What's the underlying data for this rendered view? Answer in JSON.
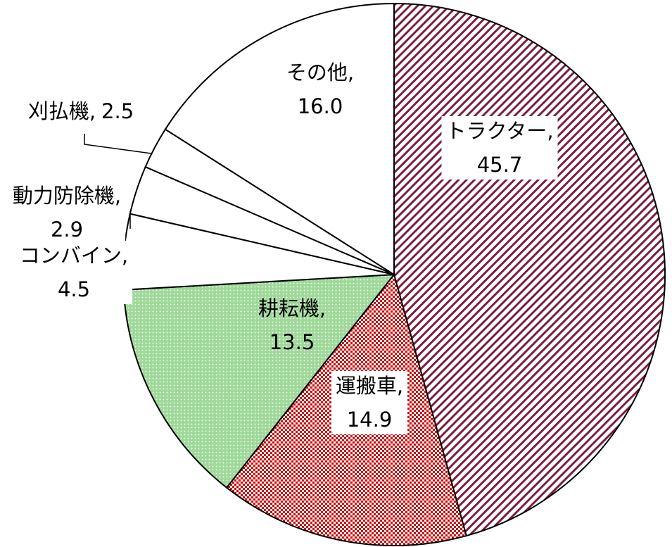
{
  "chart_data": {
    "type": "pie",
    "categories": [
      "トラクター",
      "運搬車",
      "耕耘機",
      "コンバイン",
      "動力防除機",
      "刈払機",
      "その他"
    ],
    "values": [
      45.7,
      14.9,
      13.5,
      4.5,
      2.9,
      2.5,
      16.0
    ],
    "colors": [
      "#7a1f3d",
      "#cc0000",
      "#9fd99a",
      "#ffffff",
      "#ffffff",
      "#ffffff",
      "#ffffff"
    ],
    "label_separator": ","
  }
}
